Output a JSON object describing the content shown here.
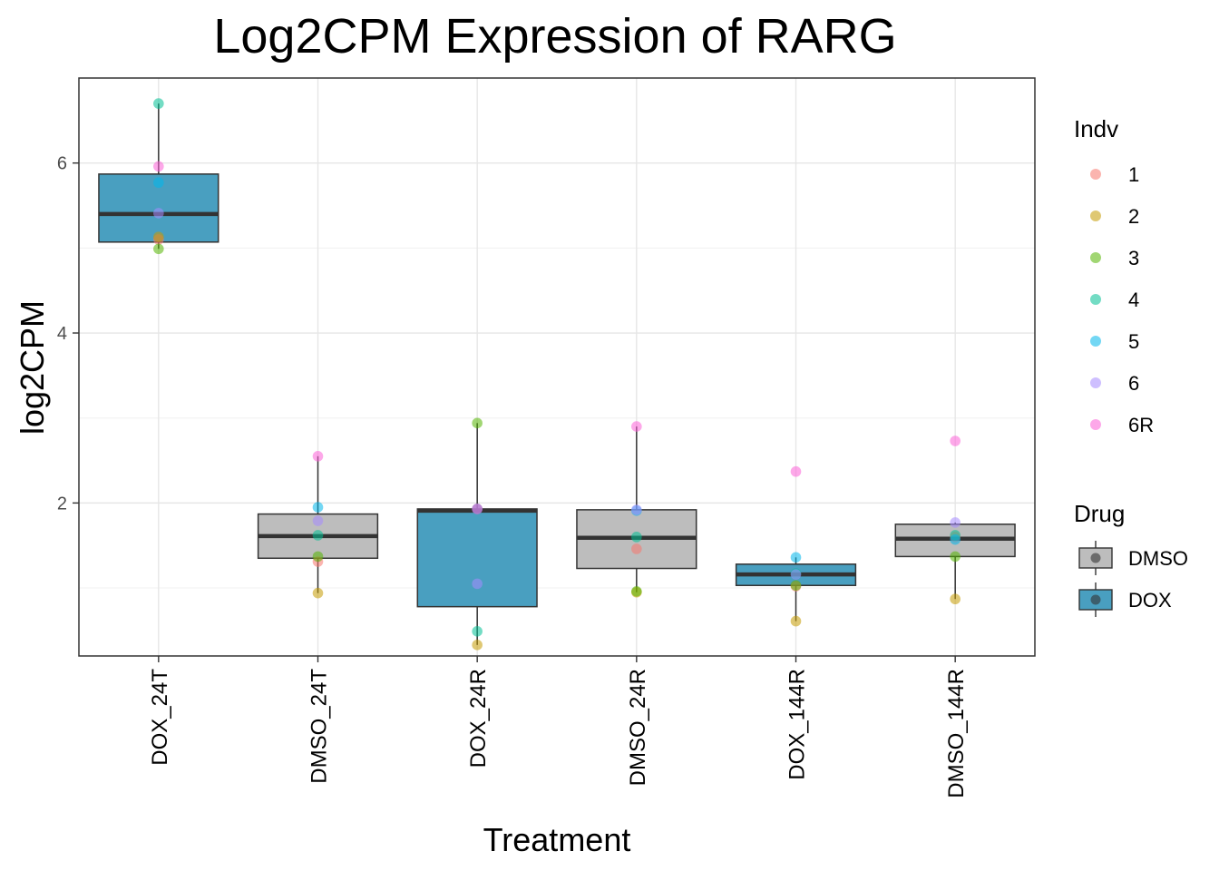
{
  "chart_data": {
    "type": "box",
    "title": "Log2CPM Expression of RARG",
    "xlabel": "Treatment",
    "ylabel": "log2CPM",
    "ylim": [
      0.2,
      7.0
    ],
    "yticks": [
      2,
      4,
      6
    ],
    "grid": true,
    "categories": [
      "DOX_24T",
      "DMSO_24T",
      "DOX_24R",
      "DMSO_24R",
      "DOX_144R",
      "DMSO_144R"
    ],
    "drug": [
      "DOX",
      "DMSO",
      "DOX",
      "DMSO",
      "DOX",
      "DMSO"
    ],
    "boxes": [
      {
        "category": "DOX_24T",
        "q1": 5.07,
        "median": 5.4,
        "q3": 5.87,
        "whisker_low": 4.99,
        "whisker_high": 6.7
      },
      {
        "category": "DMSO_24T",
        "q1": 1.35,
        "median": 1.61,
        "q3": 1.87,
        "whisker_low": 0.94,
        "whisker_high": 2.55
      },
      {
        "category": "DOX_24R",
        "q1": 0.78,
        "median": 1.91,
        "q3": 1.93,
        "whisker_low": 0.33,
        "whisker_high": 2.94
      },
      {
        "category": "DMSO_24R",
        "q1": 1.23,
        "median": 1.59,
        "q3": 1.92,
        "whisker_low": 0.95,
        "whisker_high": 2.9
      },
      {
        "category": "DOX_144R",
        "q1": 1.03,
        "median": 1.16,
        "q3": 1.28,
        "whisker_low": 0.61,
        "whisker_high": 1.36
      },
      {
        "category": "DMSO_144R",
        "q1": 1.37,
        "median": 1.58,
        "q3": 1.75,
        "whisker_low": 0.87,
        "whisker_high": 1.77
      }
    ],
    "points": {
      "1": [
        5.1,
        1.31,
        1.93,
        1.46,
        1.02,
        1.6
      ],
      "2": [
        5.13,
        0.94,
        0.33,
        0.95,
        0.61,
        0.87
      ],
      "3": [
        4.99,
        1.37,
        2.94,
        0.96,
        1.03,
        1.37
      ],
      "4": [
        6.7,
        1.62,
        0.49,
        1.6,
        1.17,
        1.62
      ],
      "5": [
        5.77,
        1.95,
        1.93,
        1.91,
        1.36,
        1.57
      ],
      "6": [
        5.41,
        1.79,
        1.05,
        1.92,
        1.16,
        1.77
      ],
      "6R": [
        5.96,
        2.55,
        1.93,
        2.9,
        2.37,
        2.73
      ]
    },
    "legend": {
      "indv_title": "Indv",
      "indv": [
        {
          "label": "1",
          "color": "#F8766D"
        },
        {
          "label": "2",
          "color": "#C49A00"
        },
        {
          "label": "3",
          "color": "#53B400"
        },
        {
          "label": "4",
          "color": "#00C094"
        },
        {
          "label": "5",
          "color": "#00B6EB"
        },
        {
          "label": "6",
          "color": "#A58AFF"
        },
        {
          "label": "6R",
          "color": "#FB61D7"
        }
      ],
      "drug_title": "Drug",
      "drug": [
        {
          "label": "DMSO",
          "color": "#BDBDBD"
        },
        {
          "label": "DOX",
          "color": "#499FC0"
        }
      ]
    }
  }
}
